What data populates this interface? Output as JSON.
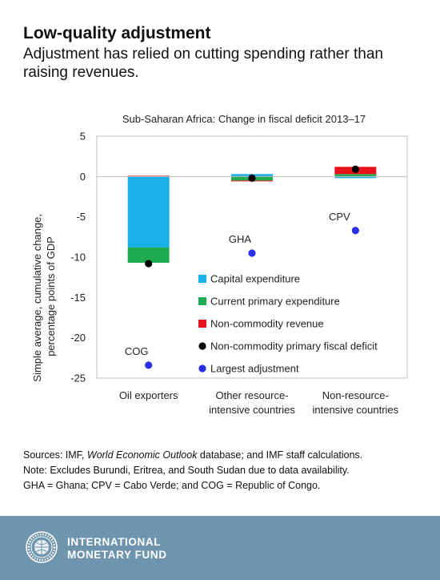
{
  "header": {
    "title": "Low-quality adjustment",
    "subtitle": "Adjustment has relied on cutting spending rather than raising revenues."
  },
  "chart_data": {
    "type": "bar",
    "stacked": true,
    "title": "Sub-Saharan Africa: Change in fiscal deficit 2013–17",
    "ylabel_lines": [
      "Simple average, cumulative change,",
      "percentage points of GDP"
    ],
    "xlabel": "",
    "ylim": [
      -25,
      5
    ],
    "yticks": [
      5,
      0,
      -5,
      -10,
      -15,
      -20,
      -25
    ],
    "grid": false,
    "legend_position": "inside-bottom-right",
    "categories": [
      [
        "Oil exporters"
      ],
      [
        "Other resource-",
        "intensive countries"
      ],
      [
        "Non-resource-",
        "intensive countries"
      ]
    ],
    "series": [
      {
        "name": "Capital expenditure",
        "type": "bar",
        "color": "#1ab0ea",
        "values": [
          -8.8,
          0.3,
          -0.2
        ]
      },
      {
        "name": "Current primary expenditure",
        "type": "bar",
        "color": "#1faa4f",
        "values": [
          -1.9,
          -0.5,
          0.3
        ]
      },
      {
        "name": "Non-commodity revenue",
        "type": "bar",
        "color": "#e8121b",
        "values": [
          0.1,
          -0.1,
          0.9
        ]
      },
      {
        "name": "Non-commodity primary fiscal deficit",
        "type": "marker",
        "color": "#000000",
        "values": [
          -10.8,
          -0.2,
          0.9
        ]
      },
      {
        "name": "Largest adjustment",
        "type": "marker",
        "color": "#2a2ee6",
        "values": [
          -23.4,
          -9.5,
          -6.7
        ]
      }
    ],
    "annotations": [
      {
        "text": "COG",
        "category": 0,
        "y": -23.4
      },
      {
        "text": "GHA",
        "category": 1,
        "y": -9.5
      },
      {
        "text": "CPV",
        "category": 2,
        "y": -6.7
      }
    ]
  },
  "notes": {
    "sources_prefix": "Sources: IMF, ",
    "sources_italic": "World Economic Outlook",
    "sources_suffix": " database; and IMF staff calculations.",
    "note": "Note: Excludes Burundi, Eritrea, and South Sudan due to data availability.",
    "abbrev": "GHA = Ghana; CPV = Cabo Verde; and COG = Republic of Congo."
  },
  "footer": {
    "brand_line1": "INTERNATIONAL",
    "brand_line2": "MONETARY FUND",
    "logo_icon": "imf-seal-icon",
    "background": "#6f94ad"
  }
}
